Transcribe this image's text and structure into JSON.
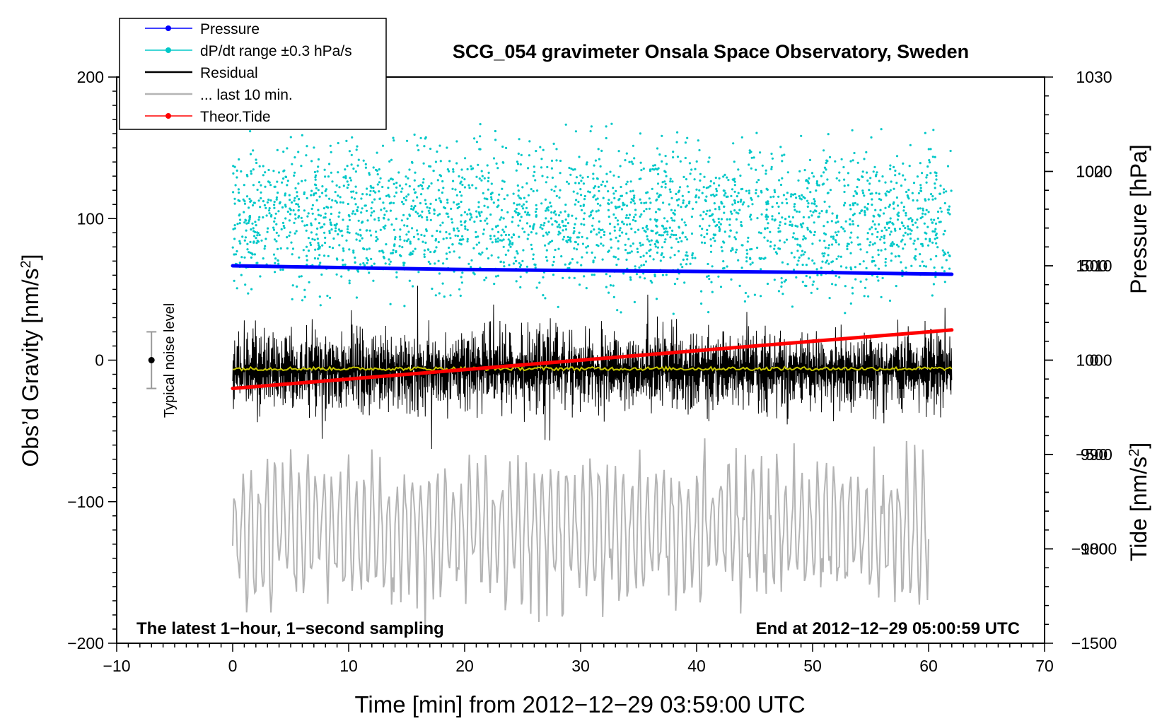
{
  "chart_data": {
    "type": "line",
    "title": "SCG_054 gravimeter Onsala Space Observatory, Sweden",
    "xlabel": "Time [min] from 2012−12−29 03:59:00 UTC",
    "ylabel_left": "Obs’d Gravity [nm/s",
    "ylabel_left_sup": "2",
    "ylabel_left_close": "]",
    "ylabel_right_pressure": "Pressure [hPa]",
    "ylabel_right_tide": "Tide [nm/s",
    "ylabel_right_tide_sup": "2",
    "ylabel_right_tide_close": "]",
    "xlim": [
      -10,
      70
    ],
    "ylim": [
      -200,
      200
    ],
    "pressure_lim": [
      970,
      1030
    ],
    "tide_lim": [
      -1500,
      1500
    ],
    "x_ticks": [
      {
        "v": -10,
        "label": "−10"
      },
      {
        "v": 0,
        "label": "0"
      },
      {
        "v": 10,
        "label": "10"
      },
      {
        "v": 20,
        "label": "20"
      },
      {
        "v": 30,
        "label": "30"
      },
      {
        "v": 40,
        "label": "40"
      },
      {
        "v": 50,
        "label": "50"
      },
      {
        "v": 60,
        "label": "60"
      },
      {
        "v": 70,
        "label": "70"
      }
    ],
    "y_ticks": [
      {
        "v": 200,
        "label": "200"
      },
      {
        "v": 100,
        "label": "100"
      },
      {
        "v": 0,
        "label": "0"
      },
      {
        "v": -100,
        "label": "−100"
      },
      {
        "v": -200,
        "label": "−200"
      }
    ],
    "pressure_ticks": [
      {
        "v": 1030,
        "label": "1030"
      },
      {
        "v": 1020,
        "label": "1020"
      },
      {
        "v": 1010,
        "label": "1010"
      },
      {
        "v": 1000,
        "label": "1000"
      },
      {
        "v": 990,
        "label": "990"
      },
      {
        "v": 980,
        "label": "980"
      }
    ],
    "tide_ticks": [
      {
        "v": 1000,
        "label": "1000"
      },
      {
        "v": 500,
        "label": "500"
      },
      {
        "v": 0,
        "label": "0"
      },
      {
        "v": -500,
        "label": "−500"
      },
      {
        "v": -1000,
        "label": "−1000"
      },
      {
        "v": -1500,
        "label": "−1500"
      }
    ],
    "legend_position": "top-left",
    "legend": [
      {
        "label": "Pressure",
        "color": "#0000ff",
        "marker": true
      },
      {
        "label": "dP/dt range ±0.3 hPa/s",
        "color": "#00c8c8",
        "marker": true
      },
      {
        "label": "Residual",
        "color": "#000000",
        "marker": false
      },
      {
        "label": "... last 10 min.",
        "color": "#b4b4b4",
        "marker": false
      },
      {
        "label": "Theor.Tide",
        "color": "#ff0000",
        "marker": true
      }
    ],
    "annotations": {
      "bottom_left": "The latest 1−hour, 1−second sampling",
      "bottom_right": "End at 2012−12−29 05:00:59 UTC",
      "noise_label": "Typical noise level"
    },
    "noise_bar": {
      "x": -7,
      "center": 0,
      "half_range": 20
    },
    "series": [
      {
        "name": "Pressure",
        "axis": "pressure",
        "x": [
          0,
          10,
          20,
          30,
          40,
          50,
          62
        ],
        "values": [
          1010.0,
          1009.8,
          1009.6,
          1009.5,
          1009.4,
          1009.3,
          1009.1
        ]
      },
      {
        "name": "Theor.Tide",
        "axis": "tide",
        "x": [
          0,
          10,
          20,
          30,
          40,
          50,
          62
        ],
        "values": [
          -150,
          -100,
          -50,
          0,
          50,
          100,
          160
        ]
      },
      {
        "name": "Residual",
        "axis": "gravity",
        "x_range": [
          0,
          62
        ],
        "mean": -7,
        "amplitude": 30
      },
      {
        "name": "... last 10 min.",
        "axis": "gravity",
        "x_range": [
          0,
          60
        ],
        "mean": -120,
        "amplitude": 40
      },
      {
        "name": "Residual smoothed",
        "axis": "gravity",
        "x_range": [
          0,
          62
        ],
        "mean": -6
      },
      {
        "name": "dP/dt range ±0.3 hPa/s",
        "axis": "gravity",
        "x_range": [
          0,
          62
        ],
        "center": 100,
        "spread": 70
      }
    ]
  }
}
